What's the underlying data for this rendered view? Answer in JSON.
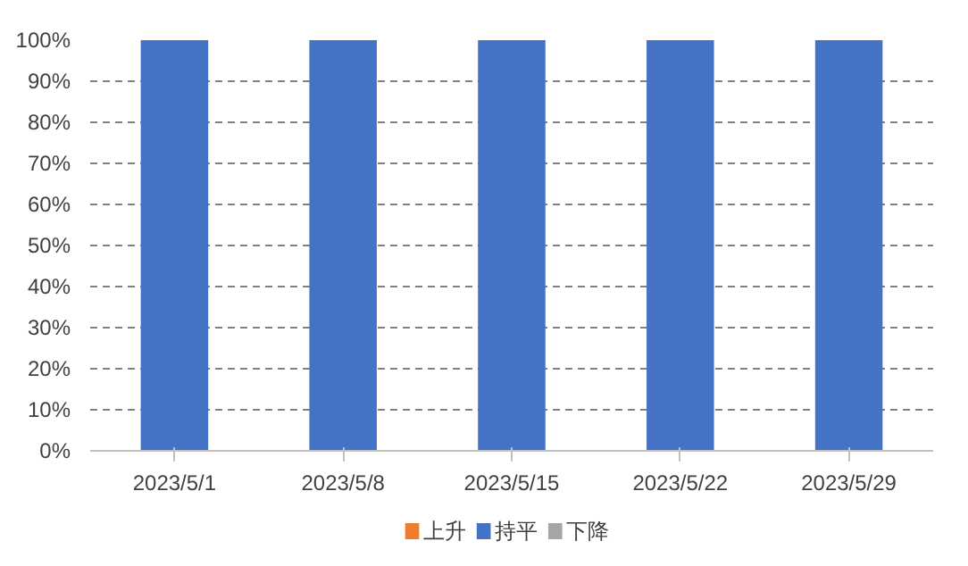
{
  "chart_data": {
    "type": "bar",
    "stacked": true,
    "categories": [
      "2023/5/1",
      "2023/5/8",
      "2023/5/15",
      "2023/5/22",
      "2023/5/29"
    ],
    "series": [
      {
        "name": "上升",
        "color": "#ed7d31",
        "values": [
          0,
          0,
          0,
          0,
          0
        ]
      },
      {
        "name": "持平",
        "color": "#4472c4",
        "values": [
          100,
          100,
          100,
          100,
          100
        ]
      },
      {
        "name": "下降",
        "color": "#a5a5a5",
        "values": [
          0,
          0,
          0,
          0,
          0
        ]
      }
    ],
    "ylim": [
      0,
      100
    ],
    "yticks": [
      {
        "value": 0,
        "label": "0%"
      },
      {
        "value": 10,
        "label": "10%"
      },
      {
        "value": 20,
        "label": "20%"
      },
      {
        "value": 30,
        "label": "30%"
      },
      {
        "value": 40,
        "label": "40%"
      },
      {
        "value": 50,
        "label": "50%"
      },
      {
        "value": 60,
        "label": "60%"
      },
      {
        "value": 70,
        "label": "70%"
      },
      {
        "value": 80,
        "label": "80%"
      },
      {
        "value": 90,
        "label": "90%"
      },
      {
        "value": 100,
        "label": "100%"
      }
    ],
    "grid": "y",
    "legend": "bottom"
  }
}
